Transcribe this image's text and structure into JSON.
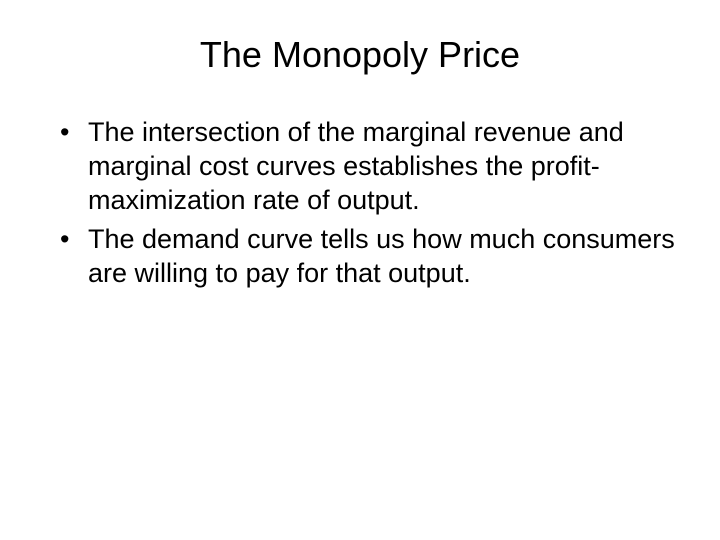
{
  "slide": {
    "title": "The Monopoly Price",
    "title_fontsize": 36,
    "body_fontsize": 27,
    "background_color": "#ffffff",
    "text_color": "#000000",
    "bullets": [
      "The intersection of the marginal revenue and marginal cost curves establishes the profit-maximization rate of output.",
      "The demand curve tells us how much consumers are willing to pay for that output."
    ]
  }
}
